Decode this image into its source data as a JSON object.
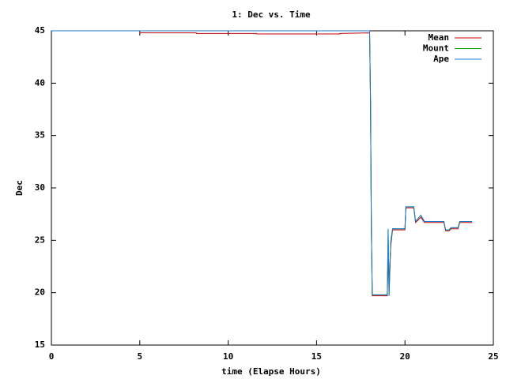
{
  "chart_data": {
    "type": "line",
    "title": "1: Dec vs. Time",
    "xlabel": "time (Elapse Hours)",
    "ylabel": "Dec",
    "x": [
      0,
      5,
      5.01,
      8.2,
      8.21,
      11.6,
      11.61,
      16.3,
      16.31,
      18.0,
      18.05,
      18.1,
      18.15,
      19.0,
      19.05,
      19.1,
      19.2,
      19.3,
      19.4,
      20.0,
      20.05,
      20.5,
      20.6,
      20.9,
      21.1,
      21.3,
      21.5,
      22.2,
      22.3,
      22.5,
      22.6,
      23.0,
      23.1,
      23.8
    ],
    "series": [
      {
        "name": "Mean",
        "color": "#c00000",
        "values": [
          45,
          45,
          44.8,
          44.8,
          44.75,
          44.75,
          44.7,
          44.7,
          44.75,
          44.8,
          38.6,
          26,
          19.7,
          19.7,
          23,
          21.3,
          24.5,
          26,
          26,
          26,
          28.1,
          28.1,
          26.7,
          27.2,
          26.7,
          26.7,
          26.7,
          26.7,
          25.9,
          25.9,
          26.1,
          26.1,
          26.7,
          26.7
        ]
      },
      {
        "name": "Mount",
        "color": "#00a000",
        "values": [
          45,
          45,
          45,
          45,
          45,
          45,
          45,
          45,
          45,
          45,
          38.6,
          26,
          19.8,
          19.8,
          26,
          19.7,
          24.8,
          26.1,
          26.1,
          26.1,
          28.2,
          28.2,
          26.8,
          27.4,
          26.8,
          26.8,
          26.8,
          26.8,
          26,
          26,
          26.2,
          26.2,
          26.8,
          26.8
        ]
      },
      {
        "name": "Ape",
        "color": "#1e78d0",
        "values": [
          45,
          45,
          45,
          45,
          45,
          45,
          45,
          45,
          45,
          45,
          38.6,
          26,
          19.8,
          19.8,
          26.1,
          19.7,
          25,
          26.1,
          26.1,
          26.1,
          28.2,
          28.2,
          26.8,
          27.4,
          26.8,
          26.8,
          26.8,
          26.8,
          26,
          26,
          26.2,
          26.2,
          26.8,
          26.8
        ]
      }
    ],
    "xlim": [
      0,
      25
    ],
    "xticks": [
      0,
      5,
      10,
      15,
      20,
      25
    ],
    "ylim": [
      15,
      45
    ],
    "yticks": [
      15,
      20,
      25,
      30,
      35,
      40,
      45
    ],
    "grid": false,
    "legend": "top-right"
  }
}
